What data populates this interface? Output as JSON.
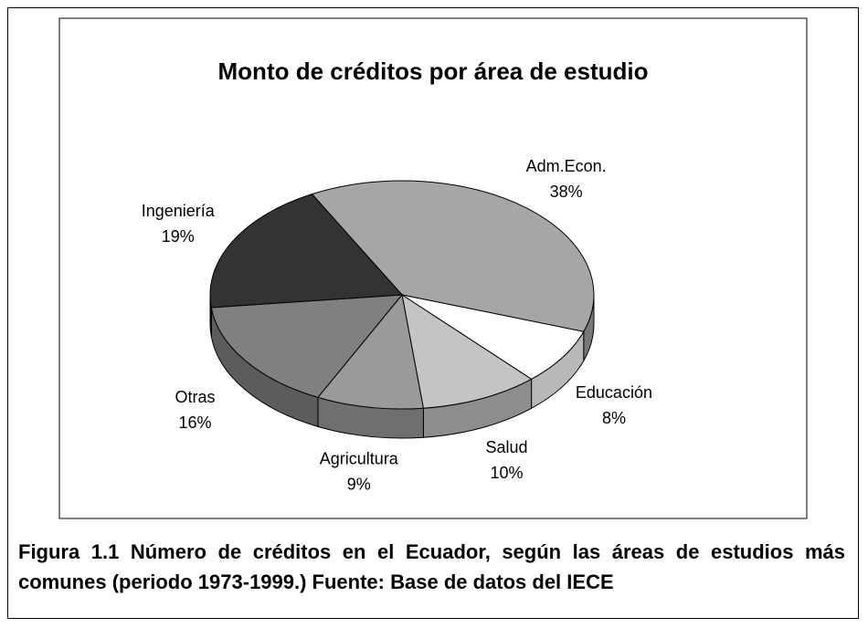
{
  "chart_data": {
    "type": "pie3d",
    "title": "Monto de créditos por área de estudio",
    "categories": [
      "Adm.Econ.",
      "Educación",
      "Salud",
      "Agricultura",
      "Otras",
      "Ingeniería"
    ],
    "values": [
      38,
      8,
      10,
      9,
      16,
      19
    ],
    "value_labels": [
      "38%",
      "8%",
      "10%",
      "9%",
      "16%",
      "19%"
    ],
    "colors": [
      "#a6a6a6",
      "#ffffff",
      "#c4c4c4",
      "#9a9a9a",
      "#808080",
      "#333333"
    ]
  },
  "caption": "Figura 1.1 Número de créditos en el Ecuador, según las áreas de estudios más comunes (periodo 1973-1999.) Fuente: Base de datos del IECE"
}
